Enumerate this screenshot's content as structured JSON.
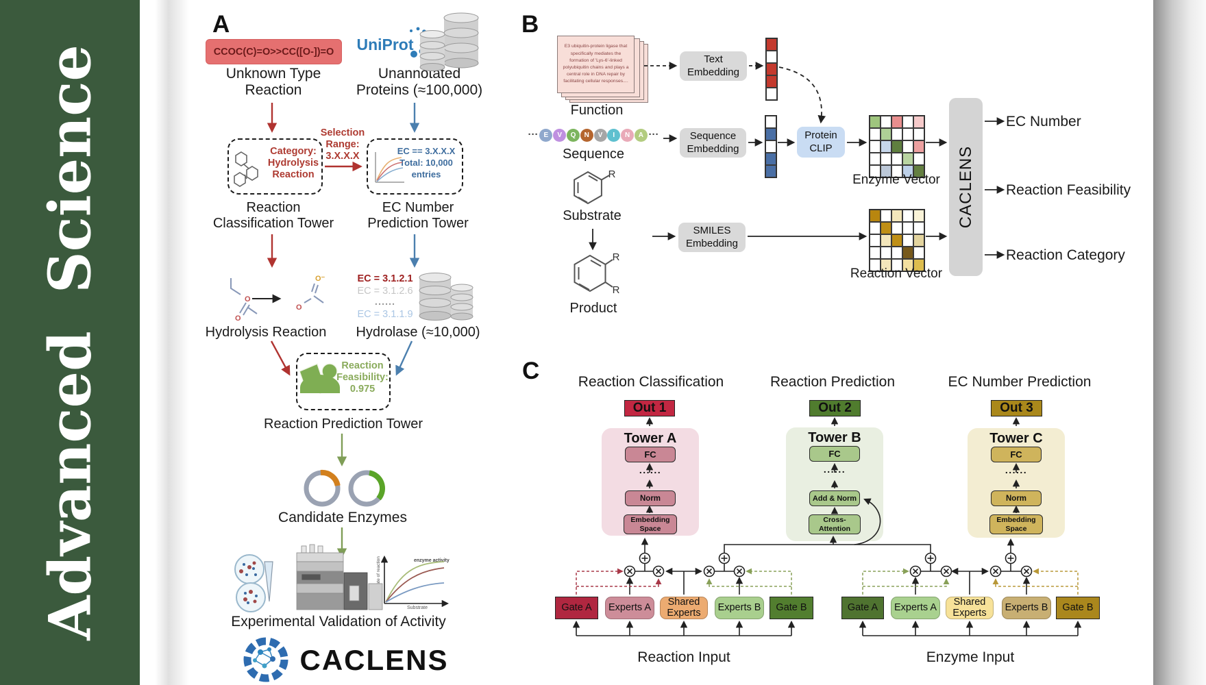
{
  "journal": {
    "title": "Advanced Science"
  },
  "panelA": {
    "label": "A",
    "smiles_box": "CCOC(C)=O>>CC([O-])=O",
    "unknown_line1": "Unknown Type",
    "unknown_line2": "Reaction",
    "uniprot": "UniProt",
    "unannotated_line1": "Unannotated",
    "unannotated_line2": "Proteins (≈100,000)",
    "category_line1": "Category:",
    "category_line2": "Hydrolysis",
    "category_line3": "Reaction",
    "selection_line1": "Selection",
    "selection_line2": "Range:",
    "selection_line3": "3.X.X.X",
    "ec_line1": "EC == 3.X.X.X",
    "ec_line2": "Total: 10,000",
    "ec_line3": "entries",
    "tower1_line1": "Reaction",
    "tower1_line2": "Classification Tower",
    "tower2_line1": "EC Number",
    "tower2_line2": "Prediction Tower",
    "hydrolysis_label": "Hydrolysis Reaction",
    "ec_list": [
      "EC = 3.1.2.1",
      "EC = 3.1.2.6",
      "......",
      "EC = 3.1.1.9"
    ],
    "hydrolase_label": "Hydrolase (≈10,000)",
    "enzyme_badge": "Enzyme",
    "feas_line1": "Reaction",
    "feas_line2": "Feasibility:",
    "feas_line3": "0.975",
    "rpt_label": "Reaction Prediction Tower",
    "candidate_label": "Candidate Enzymes",
    "graph": {
      "curve_label": "enzyme activity",
      "ylabel": "Rate of reaction",
      "xlabel": "Substrate"
    },
    "validation_label": "Experimental Validation of Activity",
    "brand": "CACLENS",
    "atom_o": "O",
    "atom_ominus": "O⁻"
  },
  "panelB": {
    "label": "B",
    "function_text": "E3 ubiquitin-protein ligase that specifically mediates the formation of 'Lys-6'-linked polyubiquitin chains and plays a central role in DNA repair by facilitating cellular responses....",
    "function_label": "Function",
    "ellipsis": "···",
    "sequence": [
      {
        "t": "E",
        "c": "#8fa8cc"
      },
      {
        "t": "V",
        "c": "#bf90e0"
      },
      {
        "t": "Q",
        "c": "#7cb55e"
      },
      {
        "t": "N",
        "c": "#b5652e"
      },
      {
        "t": "V",
        "c": "#a6a6a6"
      },
      {
        "t": "I",
        "c": "#5fc0cf"
      },
      {
        "t": "N",
        "c": "#e9aab8"
      },
      {
        "t": "A",
        "c": "#b3cc80"
      }
    ],
    "sequence_label": "Sequence",
    "substrate_label": "Substrate",
    "product_label": "Product",
    "r_group": "R",
    "text_embedding": "Text Embedding",
    "sequence_embedding": "Sequence Embedding",
    "smiles_embedding": "SMILES Embedding",
    "protein_clip": "Protein CLIP",
    "text_vector": [
      "#c43a2e",
      "#ffffff",
      "#c43a2e",
      "#c43a2e",
      "#ffffff"
    ],
    "sequence_vector": [
      "#ffffff",
      "#4a6fa5",
      "#ffffff",
      "#4a6fa5",
      "#4a6fa5"
    ],
    "enzyme_grid": [
      "#9fc57e",
      "#ffffff",
      "#e88e8e",
      "#ffffff",
      "#f6caca",
      "#ffffff",
      "#aed096",
      "#ffffff",
      "#ffffff",
      "#ffffff",
      "#ffffff",
      "#c6d6ea",
      "#5f7f3f",
      "#ffffff",
      "#eda0a0",
      "#ffffff",
      "#ffffff",
      "#ffffff",
      "#b9d4a1",
      "#ffffff",
      "#ffffff",
      "#bcc8d8",
      "#ffffff",
      "#bdd0e8",
      "#647f41"
    ],
    "reaction_grid": [
      "#b8860f",
      "#ffffff",
      "#f3e6bb",
      "#ffffff",
      "#faf3d8",
      "#ffffff",
      "#bf8f16",
      "#ffffff",
      "#ffffff",
      "#ffffff",
      "#ffffff",
      "#f3e6bb",
      "#bf8f16",
      "#ffffff",
      "#e3d49e",
      "#ffffff",
      "#ffffff",
      "#ffffff",
      "#77591b",
      "#ffffff",
      "#ffffff",
      "#f3e6bb",
      "#ffffff",
      "#f3e0a0",
      "#ddbd4e"
    ],
    "enzyme_vector_label": "Enzyme Vector",
    "reaction_vector_label": "Reaction Vector",
    "caclens": "CACLENS",
    "outputs": [
      "EC Number",
      "Reaction Feasibility",
      "Reaction Category"
    ]
  },
  "panelC": {
    "label": "C",
    "headings": [
      "Reaction Classification",
      "Reaction Prediction",
      "EC Number Prediction"
    ],
    "outs": [
      "Out 1",
      "Out 2",
      "Out 3"
    ],
    "towers": [
      {
        "title": "Tower A",
        "l1": "FC",
        "dots": "......",
        "l2": "Norm",
        "l3": "Embedding Space"
      },
      {
        "title": "Tower B",
        "l1": "FC",
        "dots": "......",
        "l2": "Add & Norm",
        "l3": "Cross-Attention"
      },
      {
        "title": "Tower C",
        "l1": "FC",
        "dots": "......",
        "l2": "Norm",
        "l3": "Embedding Space"
      }
    ],
    "moe": [
      {
        "boxes": [
          "Gate A",
          "Experts A",
          "Shared Experts",
          "Experts B",
          "Gate B"
        ],
        "input": "Reaction Input"
      },
      {
        "boxes": [
          "Gate A",
          "Experts A",
          "Shared Experts",
          "Experts B",
          "Gate B"
        ],
        "input": "Enzyme Input"
      }
    ]
  }
}
